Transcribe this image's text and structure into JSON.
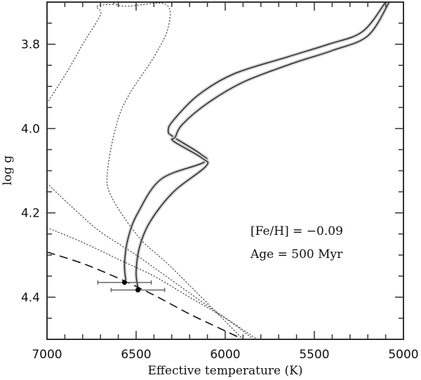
{
  "chart_data": {
    "type": "line",
    "title": "",
    "xlabel": "Effective temperature (K)",
    "ylabel": "log g",
    "xlim": [
      7000,
      5000
    ],
    "ylim": [
      4.5,
      3.7
    ],
    "x_inverted": true,
    "y_inverted": true,
    "grid": false,
    "x_ticks": [
      7000,
      6500,
      6000,
      5500,
      5000
    ],
    "x_tick_labels": [
      "7000",
      "6500",
      "6000",
      "5500",
      "5000"
    ],
    "x_minor_step": 100,
    "y_ticks": [
      3.8,
      4.0,
      4.2,
      4.4
    ],
    "y_tick_labels": [
      "3.8",
      "4.0",
      "4.2",
      "4.4"
    ],
    "y_minor_step": 0.05,
    "annotations": [
      "[Fe/H] = −0.09",
      "Age = 500 Myr"
    ],
    "series": [
      {
        "name": "Evolutionary track (star 1)",
        "style": "solid-with-grey-halo",
        "points": [
          [
            6558,
            4.36
          ],
          [
            6565,
            4.32
          ],
          [
            6545,
            4.26
          ],
          [
            6490,
            4.2
          ],
          [
            6360,
            4.12
          ],
          [
            6120,
            4.08
          ],
          [
            6140,
            4.06
          ],
          [
            6290,
            4.02
          ],
          [
            6320,
            4.005
          ],
          [
            6290,
            3.98
          ],
          [
            6150,
            3.92
          ],
          [
            5950,
            3.87
          ],
          [
            5650,
            3.83
          ],
          [
            5420,
            3.8
          ],
          [
            5230,
            3.77
          ],
          [
            5100,
            3.7
          ]
        ]
      },
      {
        "name": "Evolutionary track (star 2)",
        "style": "solid-with-grey-halo",
        "points": [
          [
            6490,
            4.378
          ],
          [
            6500,
            4.34
          ],
          [
            6480,
            4.28
          ],
          [
            6420,
            4.22
          ],
          [
            6290,
            4.15
          ],
          [
            6110,
            4.09
          ],
          [
            6130,
            4.07
          ],
          [
            6290,
            4.03
          ],
          [
            6280,
            4.02
          ],
          [
            6240,
            3.99
          ],
          [
            6100,
            3.94
          ],
          [
            5900,
            3.89
          ],
          [
            5620,
            3.845
          ],
          [
            5400,
            3.815
          ],
          [
            5200,
            3.78
          ],
          [
            5080,
            3.7
          ]
        ]
      },
      {
        "name": "ZAMS",
        "style": "dashed",
        "points": [
          [
            7000,
            4.293
          ],
          [
            6800,
            4.32
          ],
          [
            6600,
            4.355
          ],
          [
            6400,
            4.395
          ],
          [
            6200,
            4.44
          ],
          [
            6000,
            4.48
          ],
          [
            5900,
            4.5
          ]
        ]
      },
      {
        "name": "Isochrone dotted 1",
        "style": "dotted",
        "points": [
          [
            7000,
            4.235
          ],
          [
            6800,
            4.27
          ],
          [
            6600,
            4.31
          ],
          [
            6400,
            4.35
          ],
          [
            6200,
            4.4
          ],
          [
            6000,
            4.45
          ],
          [
            5840,
            4.5
          ]
        ]
      },
      {
        "name": "Isochrone dotted 2",
        "style": "dotted",
        "points": [
          [
            7000,
            4.13
          ],
          [
            6850,
            4.19
          ],
          [
            6700,
            4.245
          ],
          [
            6500,
            4.3
          ],
          [
            6300,
            4.36
          ],
          [
            6100,
            4.42
          ],
          [
            5820,
            4.5
          ]
        ]
      },
      {
        "name": "Instability strip blue edge (dotted)",
        "style": "dotted",
        "points": [
          [
            7000,
            3.94
          ],
          [
            6880,
            3.86
          ],
          [
            6800,
            3.8
          ],
          [
            6700,
            3.73
          ],
          [
            6720,
            3.71
          ],
          [
            6620,
            3.705
          ]
        ]
      },
      {
        "name": "Instability strip red edge (dotted)",
        "style": "dotted",
        "points": [
          [
            5900,
            4.5
          ],
          [
            6300,
            4.33
          ],
          [
            6480,
            4.26
          ],
          [
            6640,
            4.16
          ],
          [
            6660,
            4.1
          ],
          [
            6610,
            3.99
          ],
          [
            6540,
            3.92
          ],
          [
            6400,
            3.83
          ],
          [
            6320,
            3.76
          ],
          [
            6335,
            3.705
          ],
          [
            6560,
            3.71
          ],
          [
            6640,
            3.7
          ]
        ]
      },
      {
        "name": "Observed stars",
        "style": "points-with-xerr",
        "points": [
          {
            "teff": 6565,
            "logg": 4.365,
            "teff_err": 150
          },
          {
            "teff": 6490,
            "logg": 4.383,
            "teff_err": 150
          }
        ]
      }
    ]
  }
}
